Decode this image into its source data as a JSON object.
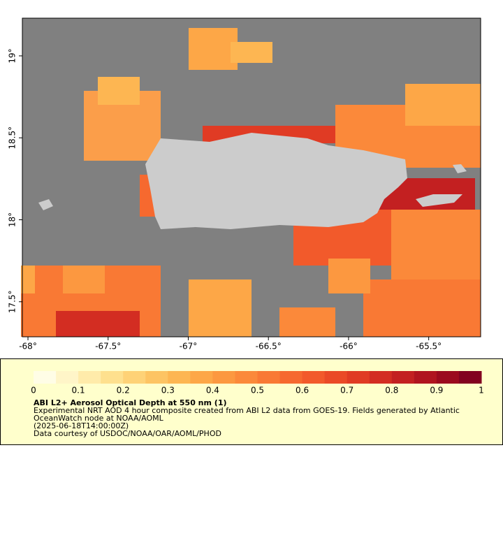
{
  "map": {
    "xlim": [
      -68.035,
      -65.176
    ],
    "ylim": [
      17.286,
      19.23
    ],
    "xticks": [
      {
        "value": -68,
        "label": "-68°"
      },
      {
        "value": -67.5,
        "label": "-67.5°"
      },
      {
        "value": -67,
        "label": "-67°"
      },
      {
        "value": -66.5,
        "label": "-66.5°"
      },
      {
        "value": -66,
        "label": "-66°"
      },
      {
        "value": -65.5,
        "label": "-65.5°"
      }
    ],
    "yticks": [
      {
        "value": 17.5,
        "label": "17.5°"
      },
      {
        "value": 18,
        "label": "18°"
      },
      {
        "value": 18.5,
        "label": "18.5°"
      },
      {
        "value": 19,
        "label": "19°"
      }
    ],
    "colorbar": {
      "lim": [
        0,
        1
      ],
      "ticks": [
        0,
        0.1,
        0.2,
        0.3,
        0.4,
        0.5,
        0.6,
        0.7,
        0.8,
        0.9,
        1
      ],
      "colors": [
        "#fffde6",
        "#fff5c8",
        "#ffebaa",
        "#fee08e",
        "#fed277",
        "#fdc463",
        "#fdb652",
        "#fda747",
        "#fc9840",
        "#fb893a",
        "#f97934",
        "#f6692f",
        "#f25a2b",
        "#ea4a27",
        "#e03b24",
        "#d32d22",
        "#c32021",
        "#b0141f",
        "#9b0a1e",
        "#820220"
      ]
    },
    "legend": {
      "title": "ABI L2+ Aerosol Optical Depth at 550 nm (1)",
      "lines": [
        "Experimental NRT AOD 4 hour composite created from ABI L2 data from GOES-19. Fields generated by Atlantic",
        "OceanWatch node at NOAA/AOML",
        "(2025-06-18T14:00:00Z)",
        "Data courtesy of USDOC/NOAA/OAR/AOML/PHOD"
      ]
    }
  }
}
